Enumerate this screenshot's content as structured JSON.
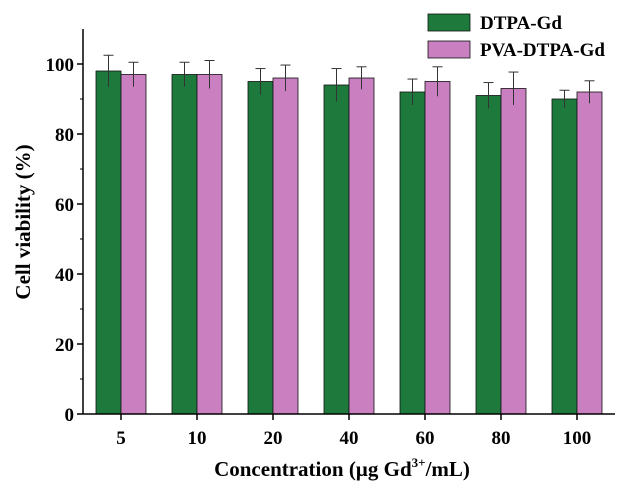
{
  "chart_data": {
    "type": "bar",
    "categories": [
      "5",
      "10",
      "20",
      "40",
      "60",
      "80",
      "100"
    ],
    "series": [
      {
        "name": "DTPA-Gd",
        "values": [
          98,
          97,
          95,
          94,
          92,
          91,
          90
        ],
        "errors": [
          4.5,
          3.5,
          3.7,
          4.7,
          3.7,
          3.7,
          2.5
        ],
        "color": "#1e7a3c"
      },
      {
        "name": "PVA-DTPA-Gd",
        "values": [
          97,
          97,
          96,
          96,
          95,
          93,
          92
        ],
        "errors": [
          3.5,
          4.0,
          3.7,
          3.2,
          4.2,
          4.7,
          3.2
        ],
        "color": "#c97fc0"
      }
    ],
    "ylabel": "Cell viability (%)",
    "xlabel_main": "Concentration (µg Gd",
    "xlabel_sup": "3+",
    "xlabel_tail": "/mL)",
    "yticks": [
      0,
      20,
      40,
      60,
      80,
      100
    ],
    "ylim": [
      0,
      110
    ],
    "legend_position": "top-right",
    "grid": false
  }
}
